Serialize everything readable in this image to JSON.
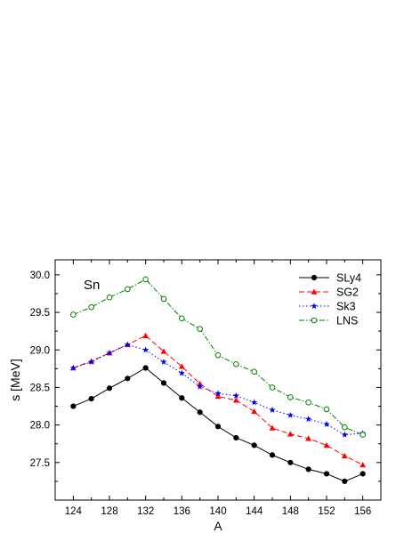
{
  "chart_data": {
    "type": "line",
    "panel_label": "Sn",
    "xlabel": "A",
    "ylabel": "s [MeV]",
    "xlim": [
      122,
      158
    ],
    "ylim": [
      27.0,
      30.2
    ],
    "xticks": [
      "124",
      "128",
      "132",
      "136",
      "140",
      "144",
      "148",
      "152",
      "156"
    ],
    "yticks": [
      "27.5",
      "28.0",
      "28.5",
      "29.0",
      "29.5",
      "30.0"
    ],
    "grid": false,
    "legend_position": "top-right",
    "x": [
      124,
      126,
      128,
      130,
      132,
      134,
      136,
      138,
      140,
      142,
      144,
      146,
      148,
      150,
      152,
      154,
      156
    ],
    "series": [
      {
        "name": "SLy4",
        "color": "#000000",
        "line_style": "solid",
        "marker": "filled-circle",
        "values": [
          28.25,
          28.35,
          28.49,
          28.62,
          28.76,
          28.56,
          28.36,
          28.17,
          27.98,
          27.83,
          27.73,
          27.6,
          27.5,
          27.41,
          27.35,
          27.25,
          27.35
        ]
      },
      {
        "name": "SG2",
        "color": "#ff0000",
        "line_style": "dashed",
        "marker": "filled-triangle",
        "values": [
          28.76,
          28.85,
          28.96,
          29.07,
          29.19,
          28.98,
          28.78,
          28.55,
          28.38,
          28.33,
          28.18,
          27.96,
          27.88,
          27.82,
          27.73,
          27.59,
          27.47
        ]
      },
      {
        "name": "Sk3",
        "color": "#0000ff",
        "line_style": "dotted",
        "marker": "star",
        "values": [
          28.76,
          28.84,
          28.96,
          29.07,
          29.0,
          28.84,
          28.69,
          28.51,
          28.42,
          28.39,
          28.3,
          28.2,
          28.13,
          28.08,
          28.01,
          27.87,
          27.89
        ]
      },
      {
        "name": "LNS",
        "color": "#008000",
        "line_style": "dash-dot",
        "marker": "open-circle",
        "values": [
          29.47,
          29.57,
          29.7,
          29.81,
          29.94,
          29.68,
          29.42,
          29.28,
          28.93,
          28.81,
          28.71,
          28.5,
          28.37,
          28.3,
          28.21,
          27.97,
          27.87
        ]
      }
    ]
  }
}
